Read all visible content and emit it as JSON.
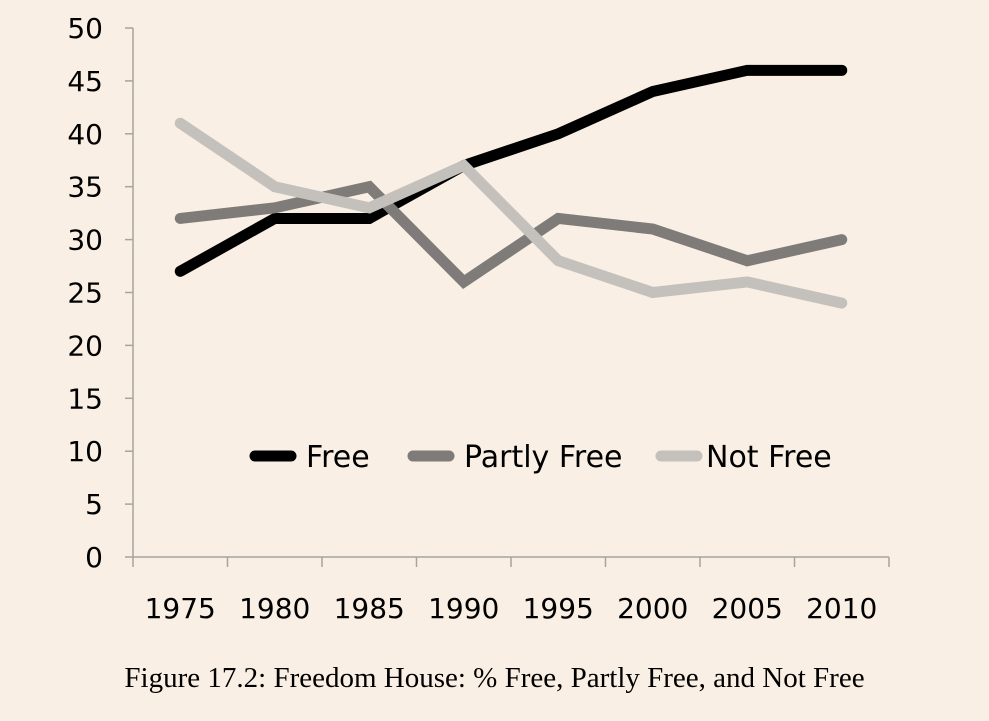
{
  "chart_data": {
    "type": "line",
    "title": "Figure 17.2: Freedom House: % Free, Partly Free, and Not Free",
    "xlabel": "",
    "ylabel": "",
    "categories": [
      "1975",
      "1980",
      "1985",
      "1990",
      "1995",
      "2000",
      "2005",
      "2010"
    ],
    "x": [
      1973,
      1978,
      1983,
      1988,
      1993,
      1998,
      2003,
      2008
    ],
    "ylim": [
      0,
      50
    ],
    "yticks": [
      0,
      5,
      10,
      15,
      20,
      25,
      30,
      35,
      40,
      45,
      50
    ],
    "grid": false,
    "legend_position": "bottom-center inside plot",
    "series": [
      {
        "name": "Free",
        "color": "#000000",
        "x": [
          1973,
          1978,
          1983,
          1988,
          1993,
          1998,
          2003,
          2008
        ],
        "values": [
          27,
          32,
          32,
          37,
          40,
          44,
          46,
          46
        ]
      },
      {
        "name": "Partly Free",
        "color": "#7e7b79",
        "x": [
          1973,
          1978,
          1983,
          1988,
          1993,
          1998,
          2003,
          2008
        ],
        "values": [
          32,
          33,
          35,
          26,
          32,
          31,
          28,
          30
        ]
      },
      {
        "name": "Not Free",
        "color": "#c4c1bd",
        "x": [
          1973,
          1978,
          1983,
          1988,
          1993,
          1998,
          2003,
          2008
        ],
        "values": [
          41,
          35,
          33,
          37,
          28,
          25,
          26,
          24
        ]
      }
    ]
  }
}
